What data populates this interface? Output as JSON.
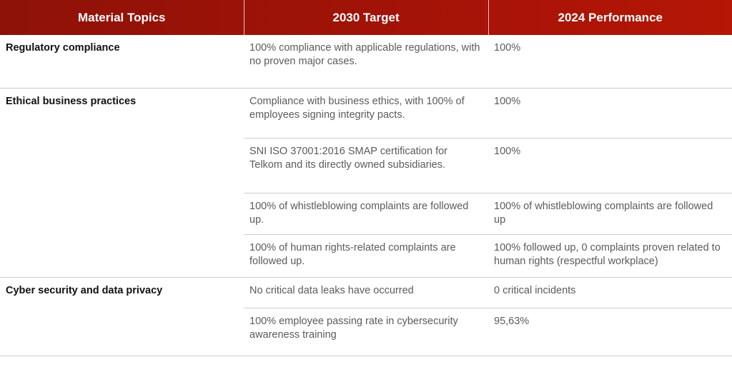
{
  "headers": [
    "Material Topics",
    "2030 Target",
    "2024 Performance"
  ],
  "groups": [
    {
      "topic": "Regulatory compliance",
      "rows": [
        {
          "target": "100% compliance with applicable regulations, with no proven major cases.",
          "performance": "100%"
        }
      ]
    },
    {
      "topic": "Ethical business practices",
      "rows": [
        {
          "target": "Compliance with business ethics, with 100% of employees signing integrity pacts.",
          "performance": "100%"
        },
        {
          "target": "SNI ISO 37001:2016 SMAP certification for Telkom and its directly owned subsidiaries.",
          "performance": "100%"
        },
        {
          "target": "100% of whistleblowing complaints are followed up.",
          "performance": "100% of whistleblowing complaints are followed up"
        },
        {
          "target": "100% of human rights-related complaints are followed up.",
          "performance": "100% followed up, 0 complaints proven related to human rights (respectful workplace)"
        }
      ]
    },
    {
      "topic": "Cyber security and data privacy",
      "rows": [
        {
          "target": "No critical data leaks have occurred",
          "performance": "0 critical incidents"
        },
        {
          "target": "100% employee passing rate in cybersecurity awareness training",
          "performance": "95,63%"
        }
      ]
    }
  ]
}
